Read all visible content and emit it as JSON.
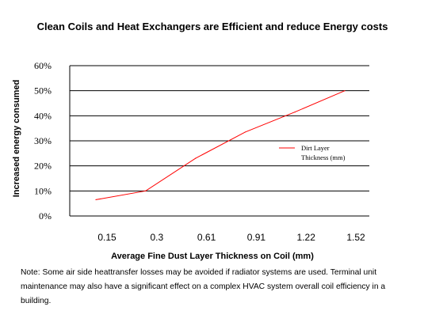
{
  "chart_data": {
    "type": "line",
    "title": "Clean Coils and Heat Exchangers are Efficient and reduce Energy costs",
    "xlabel": "Average Fine Dust Layer Thickness on Coil (mm)",
    "ylabel": "Increased energy consumed",
    "categories": [
      "0.15",
      "0.3",
      "0.61",
      "0.91",
      "1.22",
      "1.52"
    ],
    "y_ticks": [
      "0%",
      "10%",
      "20%",
      "30%",
      "40%",
      "50%",
      "60%"
    ],
    "ylim": [
      0,
      60
    ],
    "grid": true,
    "legend_position": "right",
    "series": [
      {
        "name": "Dirt Layer Thickness (mm)",
        "name_lines": [
          "Dirt Layer",
          "Thickness (mm)"
        ],
        "values": [
          6.5,
          10,
          23,
          33.5,
          41.5,
          50
        ],
        "color": "#ff0000"
      }
    ]
  },
  "note": "Note: Some air side heattransfer losses may be avoided if radiator systems are used.  Terminal unit maintenance may also have a significant effect on a complex HVAC system overall coil efficiency in a building."
}
